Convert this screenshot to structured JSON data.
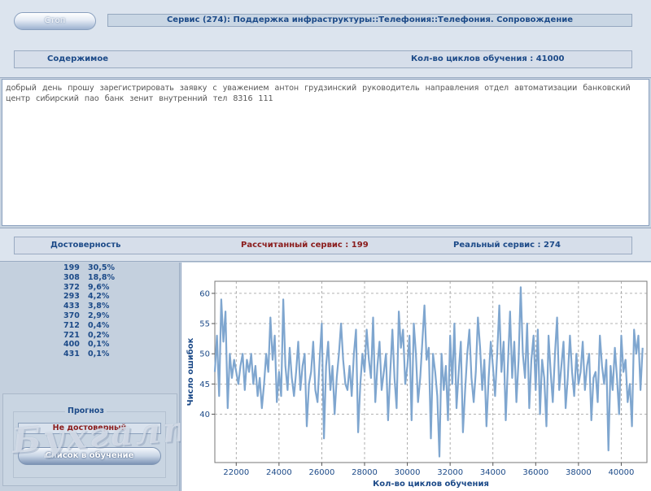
{
  "header": {
    "stop_label": "Стоп",
    "service_title": "Сервис (274): Поддержка инфраструктуры::Телефония::Телефония. Сопровождение"
  },
  "content_bar": {
    "label": "Содержимое",
    "cycles": "Кол-во циклов обучения : 41000"
  },
  "message_text": "добрый день прошу зарегистрировать заявку с уважением антон грудзинский руководитель направления отдел автоматизации банковский центр сибирский пао банк зенит внутренний тел 8316 111",
  "reliability_bar": {
    "label": "Достоверность",
    "calculated": "Рассчитанный сервис : 199",
    "real": "Реальный сервис : 274"
  },
  "probabilities": [
    {
      "service": "199",
      "percent": "30,5%"
    },
    {
      "service": "308",
      "percent": "18,8%"
    },
    {
      "service": "372",
      "percent": "9,6%"
    },
    {
      "service": "293",
      "percent": "4,2%"
    },
    {
      "service": "433",
      "percent": "3,8%"
    },
    {
      "service": "370",
      "percent": "2,9%"
    },
    {
      "service": "712",
      "percent": "0,4%"
    },
    {
      "service": "721",
      "percent": "0,2%"
    },
    {
      "service": "400",
      "percent": "0,1%"
    },
    {
      "service": "431",
      "percent": "0,1%"
    }
  ],
  "forecast": {
    "legend": "Прогноз",
    "status": "Не достоверный",
    "list_button": "Список в обучение"
  },
  "watermark_text": "Бухгалтер.ЮГ",
  "chart_data": {
    "type": "line",
    "xlabel": "Кол-во циклов обучения",
    "ylabel": "Число ошибок",
    "xlim": [
      21000,
      41200
    ],
    "ylim": [
      32,
      62
    ],
    "xticks": [
      22000,
      24000,
      26000,
      28000,
      30000,
      32000,
      34000,
      36000,
      38000,
      40000
    ],
    "yticks": [
      40,
      45,
      50,
      55,
      60
    ],
    "grid": true,
    "series": [
      {
        "color": "#7fa6cf",
        "x": [
          21000,
          21100,
          21200,
          21300,
          21400,
          21500,
          21600,
          21700,
          21800,
          21900,
          22000,
          22100,
          22200,
          22300,
          22400,
          22500,
          22600,
          22700,
          22800,
          22900,
          23000,
          23100,
          23200,
          23300,
          23400,
          23500,
          23600,
          23700,
          23800,
          23900,
          24000,
          24100,
          24200,
          24300,
          24400,
          24500,
          24600,
          24700,
          24800,
          24900,
          25000,
          25100,
          25200,
          25300,
          25400,
          25500,
          25600,
          25700,
          25800,
          25900,
          26000,
          26100,
          26200,
          26300,
          26400,
          26500,
          26600,
          26700,
          26800,
          26900,
          27000,
          27100,
          27200,
          27300,
          27400,
          27500,
          27600,
          27700,
          27800,
          27900,
          28000,
          28100,
          28200,
          28300,
          28400,
          28500,
          28600,
          28700,
          28800,
          28900,
          29000,
          29100,
          29200,
          29300,
          29400,
          29500,
          29600,
          29700,
          29800,
          29900,
          30000,
          30100,
          30200,
          30300,
          30400,
          30500,
          30600,
          30700,
          30800,
          30900,
          31000,
          31100,
          31200,
          31300,
          31400,
          31500,
          31600,
          31700,
          31800,
          31900,
          32000,
          32100,
          32200,
          32300,
          32400,
          32500,
          32600,
          32700,
          32800,
          32900,
          33000,
          33100,
          33200,
          33300,
          33400,
          33500,
          33600,
          33700,
          33800,
          33900,
          34000,
          34100,
          34200,
          34300,
          34400,
          34500,
          34600,
          34700,
          34800,
          34900,
          35000,
          35100,
          35200,
          35300,
          35400,
          35500,
          35600,
          35700,
          35800,
          35900,
          36000,
          36100,
          36200,
          36300,
          36400,
          36500,
          36600,
          36700,
          36800,
          36900,
          37000,
          37100,
          37200,
          37300,
          37400,
          37500,
          37600,
          37700,
          37800,
          37900,
          38000,
          38100,
          38200,
          38300,
          38400,
          38500,
          38600,
          38700,
          38800,
          38900,
          39000,
          39100,
          39200,
          39300,
          39400,
          39500,
          39600,
          39700,
          39800,
          39900,
          40000,
          40100,
          40200,
          40300,
          40400,
          40500,
          40600,
          40700,
          40800,
          40900,
          41000
        ],
        "values": [
          47,
          53,
          43,
          59,
          52,
          57,
          41,
          50,
          46,
          49,
          47,
          45,
          48,
          50,
          44,
          49,
          47,
          50,
          45,
          48,
          43,
          46,
          41,
          45,
          50,
          47,
          56,
          49,
          53,
          42,
          47,
          43,
          59,
          48,
          44,
          51,
          46,
          43,
          47,
          52,
          44,
          48,
          50,
          38,
          45,
          47,
          52,
          44,
          42,
          49,
          55,
          36,
          48,
          52,
          44,
          48,
          40,
          46,
          50,
          55,
          49,
          45,
          44,
          48,
          43,
          50,
          54,
          37,
          45,
          50,
          47,
          54,
          49,
          46,
          56,
          42,
          48,
          52,
          44,
          47,
          50,
          39,
          47,
          54,
          46,
          41,
          57,
          51,
          54,
          45,
          48,
          53,
          39,
          55,
          50,
          42,
          46,
          52,
          58,
          49,
          51,
          36,
          50,
          47,
          43,
          33,
          50,
          44,
          48,
          39,
          53,
          45,
          55,
          41,
          47,
          52,
          37,
          44,
          50,
          54,
          46,
          42,
          47,
          56,
          51,
          44,
          49,
          38,
          46,
          52,
          48,
          43,
          50,
          58,
          47,
          52,
          39,
          48,
          57,
          46,
          52,
          42,
          49,
          61,
          50,
          46,
          55,
          41,
          49,
          53,
          44,
          54,
          40,
          49,
          46,
          38,
          53,
          47,
          42,
          50,
          56,
          44,
          48,
          52,
          41,
          46,
          53,
          47,
          43,
          50,
          45,
          47,
          52,
          44,
          48,
          50,
          39,
          46,
          47,
          42,
          53,
          48,
          45,
          49,
          34,
          48,
          44,
          51,
          46,
          40,
          53,
          47,
          49,
          42,
          45,
          38,
          54,
          50,
          53,
          44,
          51
        ]
      }
    ]
  }
}
